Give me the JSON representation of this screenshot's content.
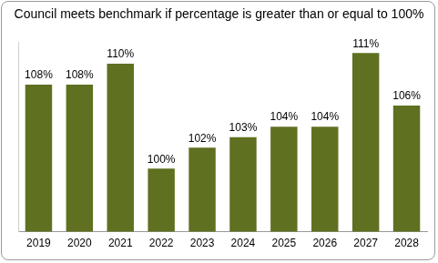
{
  "chart_data": {
    "type": "bar",
    "title": "Council meets benchmark if percentage is greater than or equal to 100%",
    "categories": [
      "2019",
      "2020",
      "2021",
      "2022",
      "2023",
      "2024",
      "2025",
      "2026",
      "2027",
      "2028"
    ],
    "values": [
      108,
      108,
      110,
      100,
      102,
      103,
      104,
      104,
      111,
      106
    ],
    "value_labels": [
      "108%",
      "108%",
      "110%",
      "100%",
      "102%",
      "103%",
      "104%",
      "104%",
      "111%",
      "106%"
    ],
    "color": "#5f7020",
    "ylim": [
      94,
      112
    ],
    "grid": false,
    "data_labels": true,
    "tick_labels": "x"
  }
}
